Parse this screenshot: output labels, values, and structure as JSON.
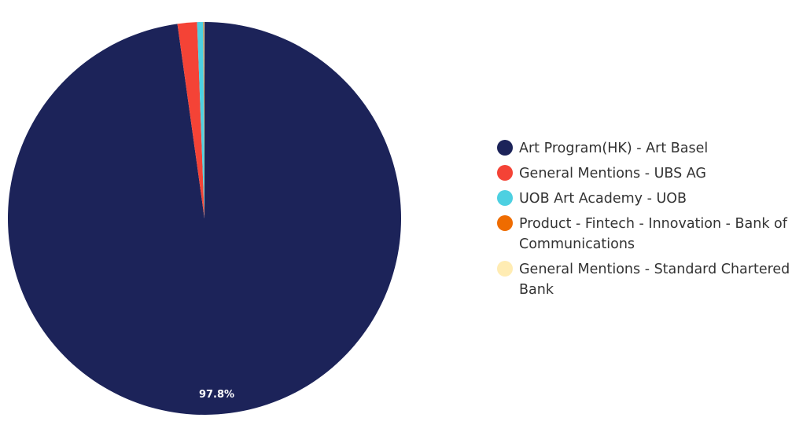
{
  "chart_data": {
    "type": "pie",
    "title": "",
    "legend_position": "right",
    "slices": [
      {
        "label": "Art Program(HK) - Art Basel",
        "value": 97.8,
        "value_label": "97.8%",
        "color": "#1c2359"
      },
      {
        "label": "General Mentions - UBS AG",
        "value": 1.6,
        "value_label": "",
        "color": "#f44336"
      },
      {
        "label": "UOB Art Academy - UOB",
        "value": 0.5,
        "value_label": "",
        "color": "#4dd0e1"
      },
      {
        "label": "Product - Fintech - Innovation - Bank of Communications",
        "value": 0.05,
        "value_label": "",
        "color": "#ef6c00"
      },
      {
        "label": "General Mentions - Standard Chartered Bank",
        "value": 0.05,
        "value_label": "",
        "color": "#ffecb3"
      }
    ]
  }
}
